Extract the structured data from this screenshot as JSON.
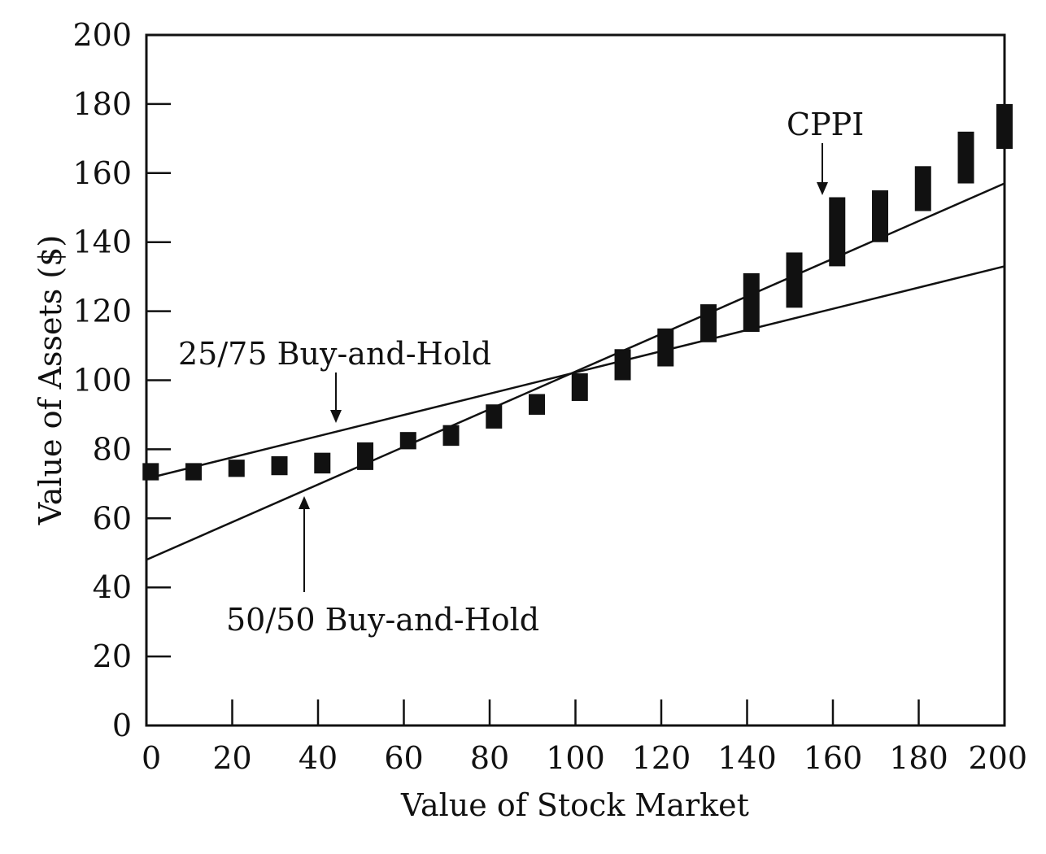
{
  "chart_data": {
    "type": "line",
    "xlabel": "Value of Stock Market",
    "ylabel": "Value of Assets ($)",
    "xlim": [
      0,
      200
    ],
    "ylim": [
      0,
      200
    ],
    "x_ticks": [
      0,
      20,
      40,
      60,
      80,
      100,
      120,
      140,
      160,
      180,
      200
    ],
    "y_ticks": [
      0,
      20,
      40,
      60,
      80,
      100,
      120,
      140,
      160,
      180,
      200
    ],
    "grid": false,
    "series": [
      {
        "name": "25/75 Buy-and-Hold",
        "kind": "line",
        "x": [
          0,
          200
        ],
        "y": [
          71.5,
          133
        ]
      },
      {
        "name": "50/50 Buy-and-Hold",
        "kind": "line",
        "x": [
          0,
          200
        ],
        "y": [
          48,
          157
        ]
      },
      {
        "name": "CPPI",
        "kind": "range-bars",
        "x": [
          1,
          11,
          21,
          31,
          41,
          51,
          61,
          71,
          81,
          91,
          101,
          111,
          121,
          131,
          141,
          151,
          161,
          171,
          181,
          191,
          200
        ],
        "low": [
          71,
          71,
          72,
          72.5,
          73,
          74,
          80,
          81,
          86,
          90,
          94,
          100,
          104,
          111,
          114,
          121,
          133,
          140,
          149,
          157,
          167
        ],
        "high": [
          76,
          76,
          77,
          78,
          79,
          82,
          85,
          87,
          93,
          96,
          102,
          109,
          115,
          122,
          131,
          137,
          153,
          155,
          162,
          172,
          180
        ]
      }
    ],
    "annotations": [
      {
        "text": "CPPI",
        "target_series": "CPPI"
      },
      {
        "text": "25/75 Buy-and-Hold",
        "target_series": "25/75 Buy-and-Hold"
      },
      {
        "text": "50/50 Buy-and-Hold",
        "target_series": "50/50 Buy-and-Hold"
      }
    ],
    "colors": {
      "ink": "#111111",
      "background": "#ffffff"
    }
  }
}
